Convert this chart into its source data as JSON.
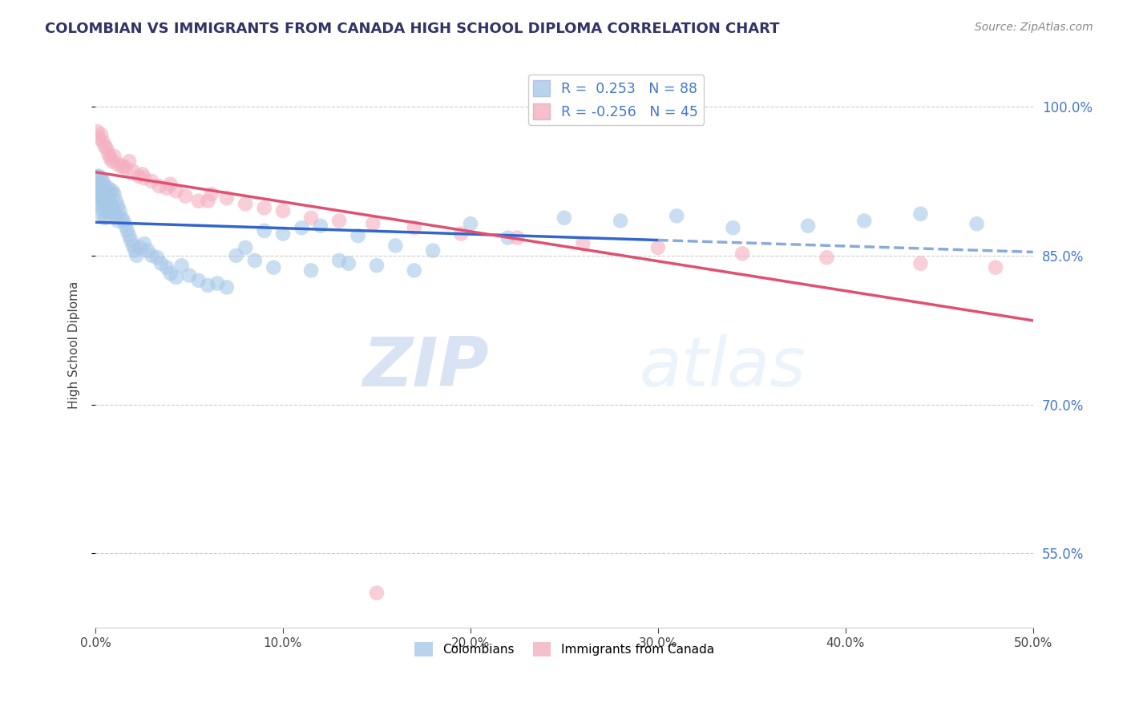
{
  "title": "COLOMBIAN VS IMMIGRANTS FROM CANADA HIGH SCHOOL DIPLOMA CORRELATION CHART",
  "source_text": "Source: ZipAtlas.com",
  "ylabel": "High School Diploma",
  "xlim": [
    0.0,
    0.5
  ],
  "ylim": [
    0.475,
    1.045
  ],
  "r_colombian": 0.253,
  "n_colombian": 88,
  "r_canada": -0.256,
  "n_canada": 45,
  "blue_color": "#a8c8e8",
  "pink_color": "#f4b0c0",
  "blue_line_color": "#3366cc",
  "pink_line_color": "#e05070",
  "blue_dash_color": "#88aadd",
  "watermark_color": "#d0ddf0",
  "right_ytick_vals": [
    0.55,
    0.7,
    0.85,
    1.0
  ],
  "right_ytick_labels": [
    "55.0%",
    "70.0%",
    "85.0%",
    "100.0%"
  ],
  "colombian_x": [
    0.001,
    0.001,
    0.001,
    0.002,
    0.002,
    0.002,
    0.002,
    0.003,
    0.003,
    0.003,
    0.003,
    0.003,
    0.004,
    0.004,
    0.004,
    0.004,
    0.005,
    0.005,
    0.005,
    0.005,
    0.006,
    0.006,
    0.006,
    0.007,
    0.007,
    0.007,
    0.008,
    0.008,
    0.008,
    0.009,
    0.009,
    0.01,
    0.01,
    0.011,
    0.011,
    0.012,
    0.012,
    0.013,
    0.014,
    0.015,
    0.016,
    0.017,
    0.018,
    0.019,
    0.02,
    0.021,
    0.022,
    0.024,
    0.026,
    0.028,
    0.03,
    0.033,
    0.035,
    0.038,
    0.04,
    0.043,
    0.046,
    0.05,
    0.055,
    0.06,
    0.065,
    0.07,
    0.08,
    0.09,
    0.1,
    0.11,
    0.12,
    0.14,
    0.16,
    0.18,
    0.2,
    0.22,
    0.25,
    0.28,
    0.31,
    0.34,
    0.38,
    0.41,
    0.44,
    0.47,
    0.15,
    0.17,
    0.13,
    0.075,
    0.085,
    0.095,
    0.115,
    0.135
  ],
  "colombian_y": [
    0.93,
    0.92,
    0.91,
    0.93,
    0.922,
    0.915,
    0.905,
    0.928,
    0.918,
    0.91,
    0.9,
    0.892,
    0.925,
    0.915,
    0.905,
    0.895,
    0.92,
    0.91,
    0.9,
    0.888,
    0.915,
    0.908,
    0.895,
    0.918,
    0.908,
    0.895,
    0.912,
    0.902,
    0.89,
    0.915,
    0.9,
    0.912,
    0.895,
    0.905,
    0.89,
    0.9,
    0.885,
    0.895,
    0.888,
    0.885,
    0.88,
    0.875,
    0.87,
    0.865,
    0.86,
    0.855,
    0.85,
    0.858,
    0.862,
    0.855,
    0.85,
    0.848,
    0.842,
    0.838,
    0.832,
    0.828,
    0.84,
    0.83,
    0.825,
    0.82,
    0.822,
    0.818,
    0.858,
    0.875,
    0.872,
    0.878,
    0.88,
    0.87,
    0.86,
    0.855,
    0.882,
    0.868,
    0.888,
    0.885,
    0.89,
    0.878,
    0.88,
    0.885,
    0.892,
    0.882,
    0.84,
    0.835,
    0.845,
    0.85,
    0.845,
    0.838,
    0.835,
    0.842
  ],
  "canada_x": [
    0.001,
    0.002,
    0.003,
    0.004,
    0.005,
    0.006,
    0.007,
    0.008,
    0.009,
    0.01,
    0.012,
    0.014,
    0.016,
    0.018,
    0.02,
    0.023,
    0.026,
    0.03,
    0.034,
    0.038,
    0.043,
    0.048,
    0.055,
    0.062,
    0.07,
    0.08,
    0.09,
    0.1,
    0.115,
    0.13,
    0.148,
    0.17,
    0.195,
    0.225,
    0.26,
    0.3,
    0.345,
    0.39,
    0.44,
    0.48,
    0.015,
    0.025,
    0.04,
    0.06,
    0.15
  ],
  "canada_y": [
    0.975,
    0.968,
    0.972,
    0.965,
    0.96,
    0.958,
    0.952,
    0.948,
    0.945,
    0.95,
    0.942,
    0.94,
    0.938,
    0.945,
    0.935,
    0.93,
    0.928,
    0.925,
    0.92,
    0.918,
    0.915,
    0.91,
    0.905,
    0.912,
    0.908,
    0.902,
    0.898,
    0.895,
    0.888,
    0.885,
    0.882,
    0.878,
    0.872,
    0.868,
    0.862,
    0.858,
    0.852,
    0.848,
    0.842,
    0.838,
    0.94,
    0.932,
    0.922,
    0.905,
    0.51
  ],
  "legend_r_col": "R =  0.253",
  "legend_n_col": "N = 88",
  "legend_r_can": "R = -0.256",
  "legend_n_can": "N = 45"
}
